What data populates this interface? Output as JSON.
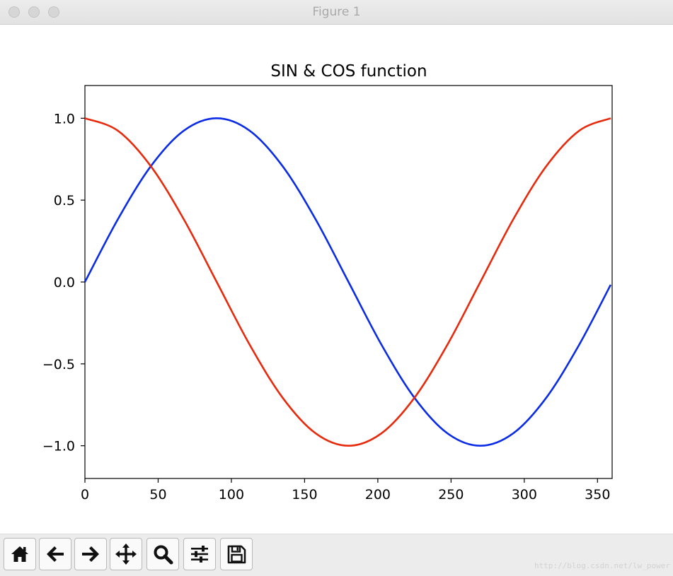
{
  "window": {
    "title": "Figure 1"
  },
  "toolbar": {
    "buttons": [
      {
        "icon": "home-icon"
      },
      {
        "icon": "back-arrow-icon"
      },
      {
        "icon": "forward-arrow-icon"
      },
      {
        "icon": "pan-move-icon"
      },
      {
        "icon": "zoom-magnifier-icon"
      },
      {
        "icon": "configure-subplots-icon"
      },
      {
        "icon": "save-floppy-icon"
      }
    ],
    "watermark": "http://blog.csdn.net/lw_power"
  },
  "chart_data": {
    "type": "line",
    "title": "SIN & COS function",
    "xlabel": "",
    "ylabel": "",
    "xlim": [
      0,
      360
    ],
    "ylim": [
      -1.2,
      1.2
    ],
    "x_ticks": [
      0,
      50,
      100,
      150,
      200,
      250,
      300,
      350
    ],
    "y_ticks": [
      -1.0,
      -0.5,
      0.0,
      0.5,
      1.0
    ],
    "x_tick_labels": [
      "0",
      "50",
      "100",
      "150",
      "200",
      "250",
      "300",
      "350"
    ],
    "y_tick_labels": [
      "−1.0",
      "−0.5",
      "0.0",
      "0.5",
      "1.0"
    ],
    "grid": false,
    "x": [
      0,
      22.5,
      45,
      67.5,
      90,
      112.5,
      135,
      157.5,
      180,
      202.5,
      225,
      247.5,
      270,
      292.5,
      315,
      337.5,
      359
    ],
    "series": [
      {
        "color": "#0a2ce6",
        "values": [
          0.0,
          0.383,
          0.707,
          0.924,
          1.0,
          0.924,
          0.707,
          0.383,
          0.0,
          -0.383,
          -0.707,
          -0.924,
          -1.0,
          -0.924,
          -0.707,
          -0.383,
          -0.017
        ]
      },
      {
        "color": "#e82a0c",
        "values": [
          1.0,
          0.924,
          0.707,
          0.383,
          0.0,
          -0.383,
          -0.707,
          -0.924,
          -1.0,
          -0.924,
          -0.707,
          -0.383,
          0.0,
          0.383,
          0.707,
          0.924,
          1.0
        ]
      }
    ]
  }
}
